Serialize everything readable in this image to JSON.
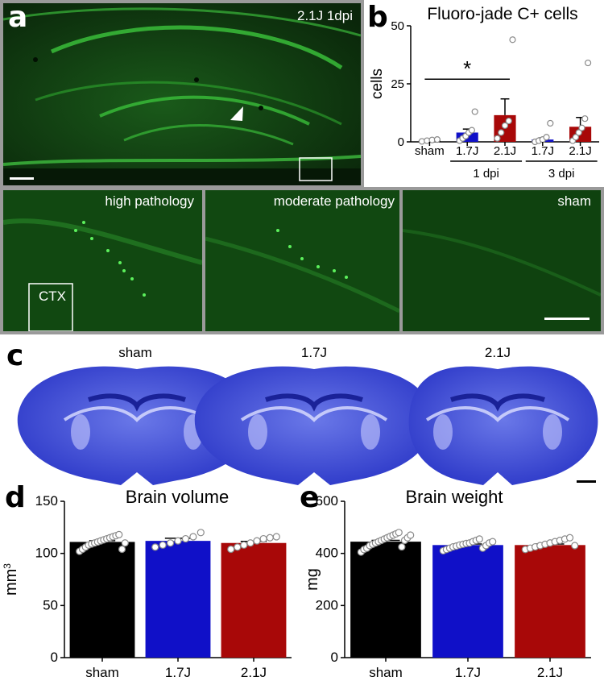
{
  "panels": {
    "a": "a",
    "b": "b",
    "c": "c",
    "d": "d",
    "e": "e"
  },
  "panel_a": {
    "condition_label": "2.1J 1dpi",
    "insets": [
      {
        "label": "high pathology",
        "sub_label": "CTX"
      },
      {
        "label": "moderate pathology"
      },
      {
        "label": "sham"
      }
    ]
  },
  "panel_c": {
    "labels": [
      "sham",
      "1.7J",
      "2.1J"
    ]
  },
  "colors": {
    "sham": "#000000",
    "j17": "#1010c8",
    "j21": "#a80808",
    "tissue": "#3a48d8",
    "fluor": "#1e8a1e",
    "frame": "#9a9a9a"
  },
  "chart_data": [
    {
      "id": "b",
      "type": "bar",
      "title": "Fluoro-jade C+ cells",
      "ylabel": "cells",
      "ylim": [
        0,
        50
      ],
      "yticks": [
        0,
        25,
        50
      ],
      "categories": [
        "sham",
        "1.7J",
        "2.1J",
        "1.7J",
        "2.1J"
      ],
      "group_labels": [
        {
          "label": "1 dpi",
          "from": 1,
          "to": 2
        },
        {
          "label": "3 dpi",
          "from": 3,
          "to": 4
        }
      ],
      "values": [
        0.5,
        4,
        11.5,
        1,
        6.5
      ],
      "errors": [
        0.3,
        1.5,
        7,
        0.7,
        4
      ],
      "colors": [
        "#000000",
        "#1010c8",
        "#a80808",
        "#1010c8",
        "#a80808"
      ],
      "points": [
        [
          0.2,
          0.5,
          0.8,
          1
        ],
        [
          0.5,
          1.5,
          2.5,
          4,
          5,
          13
        ],
        [
          1.5,
          4,
          7,
          9,
          44
        ],
        [
          0,
          0.5,
          1,
          2,
          8
        ],
        [
          0.5,
          2,
          4,
          6,
          10,
          34
        ]
      ],
      "significance": {
        "from": 0,
        "to": 2,
        "symbol": "*"
      }
    },
    {
      "id": "d",
      "type": "bar",
      "title": "Brain volume",
      "ylabel": "mm3",
      "ylim": [
        0,
        150
      ],
      "yticks": [
        0,
        50,
        100,
        150
      ],
      "categories": [
        "sham",
        "1.7J",
        "2.1J"
      ],
      "values": [
        111,
        112,
        110
      ],
      "errors": [
        1.2,
        2.5,
        1.5
      ],
      "colors": [
        "#000000",
        "#1010c8",
        "#a80808"
      ],
      "points": [
        [
          102,
          104,
          106,
          108,
          109,
          110,
          111,
          112,
          113,
          114,
          115,
          116,
          117,
          118,
          104,
          110
        ],
        [
          106,
          108,
          110,
          112,
          114,
          116,
          120
        ],
        [
          104,
          106,
          108,
          110,
          112,
          114,
          115,
          116
        ]
      ]
    },
    {
      "id": "e",
      "type": "bar",
      "title": "Brain weight",
      "ylabel": "mg",
      "ylim": [
        0,
        600
      ],
      "yticks": [
        0,
        200,
        400,
        600
      ],
      "categories": [
        "sham",
        "1.7J",
        "2.1J"
      ],
      "values": [
        445,
        432,
        432
      ],
      "errors": [
        5,
        4,
        4
      ],
      "colors": [
        "#000000",
        "#1010c8",
        "#a80808"
      ],
      "points": [
        [
          405,
          415,
          420,
          430,
          435,
          440,
          445,
          450,
          455,
          460,
          465,
          470,
          475,
          480,
          425,
          450,
          460,
          470
        ],
        [
          410,
          415,
          420,
          425,
          428,
          432,
          435,
          438,
          440,
          445,
          450,
          455,
          420,
          430,
          440,
          445
        ],
        [
          415,
          420,
          425,
          430,
          435,
          440,
          445,
          450,
          455,
          460,
          430
        ]
      ]
    }
  ]
}
